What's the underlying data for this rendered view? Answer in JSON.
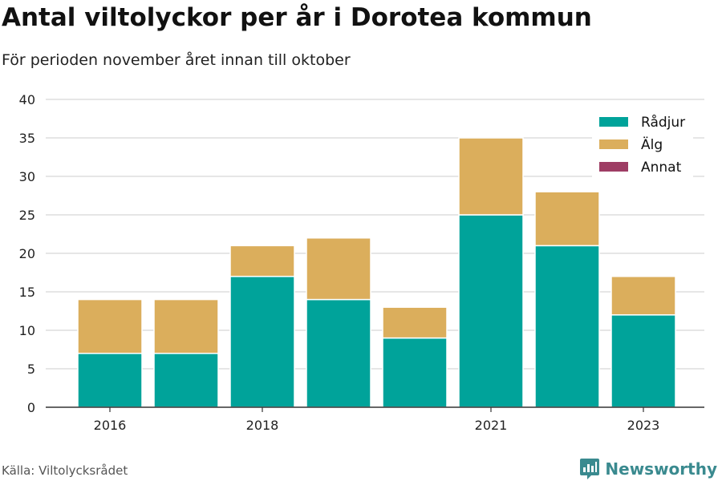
{
  "header": {
    "title": "Antal viltolyckor per år i Dorotea kommun",
    "subtitle": "För perioden november året innan till oktober"
  },
  "footer": {
    "source": "Källa: Viltolycksrådet",
    "brand": "Newsworthy",
    "brand_icon": "newsworthy-logo-icon"
  },
  "colors": {
    "radjur": "#00a39a",
    "alg": "#dbae5c",
    "annat": "#9e3d64",
    "grid": "#dddddd",
    "axis": "#333333",
    "brand": "#3a8a8f"
  },
  "chart_data": {
    "type": "bar",
    "stacked": true,
    "categories": [
      "2016",
      "2017",
      "2018",
      "2019",
      "2020",
      "2021",
      "2022",
      "2023"
    ],
    "x_tick_labels": [
      "2016",
      "2018",
      "2021",
      "2023"
    ],
    "series": [
      {
        "name": "Rådjur",
        "values": [
          7,
          7,
          17,
          14,
          9,
          25,
          21,
          12
        ]
      },
      {
        "name": "Älg",
        "values": [
          7,
          7,
          4,
          8,
          4,
          10,
          7,
          5
        ]
      },
      {
        "name": "Annat",
        "values": [
          0,
          0,
          0,
          0,
          0,
          0,
          0,
          0
        ]
      }
    ],
    "y_ticks": [
      0,
      5,
      10,
      15,
      20,
      25,
      30,
      35,
      40
    ],
    "ylim": [
      0,
      40
    ],
    "grid": true,
    "legend_position": "top-right"
  }
}
